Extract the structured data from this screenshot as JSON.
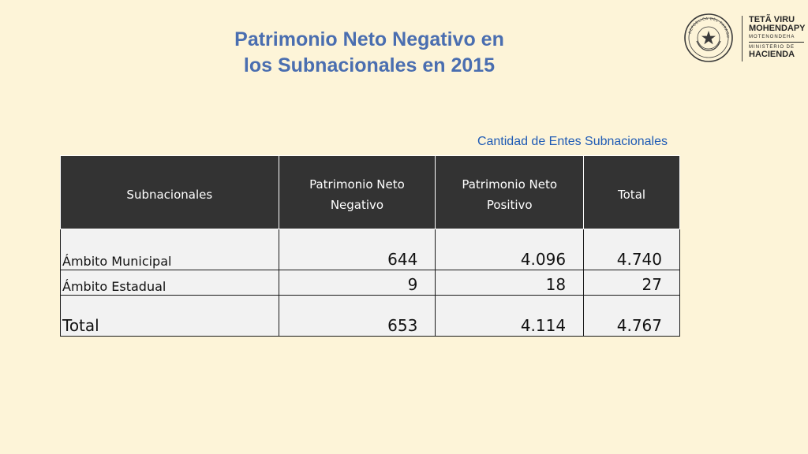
{
  "title_line1": "Patrimonio Neto Negativo en",
  "title_line2": "los Subnacionales en 2015",
  "subtitle": "Cantidad de Entes Subnacionales",
  "table": {
    "headers": [
      "Subnacionales",
      "Patrimonio Neto Negativo",
      "Patrimonio Neto Positivo",
      "Total"
    ],
    "rows": [
      [
        "Ámbito Municipal",
        "644",
        "4.096",
        "4.740"
      ],
      [
        "Ámbito Estadual",
        "9",
        "18",
        "27"
      ],
      [
        "Total",
        "653",
        "4.114",
        "4.767"
      ]
    ]
  },
  "logo": {
    "seal_text": "REPÚBLICA DEL PARAGUAY",
    "line1": "TETÃ VIRU",
    "line2": "MOHENDAPY",
    "line3": "MOTENONDEHA",
    "line4": "MINISTERIO DE",
    "line5": "HACIENDA"
  },
  "colors": {
    "background": "#fdf4d8",
    "title": "#4a6eb0",
    "subtitle": "#1f5bb5",
    "header_bg": "#333333",
    "cell_bg": "#f2f2f2"
  }
}
